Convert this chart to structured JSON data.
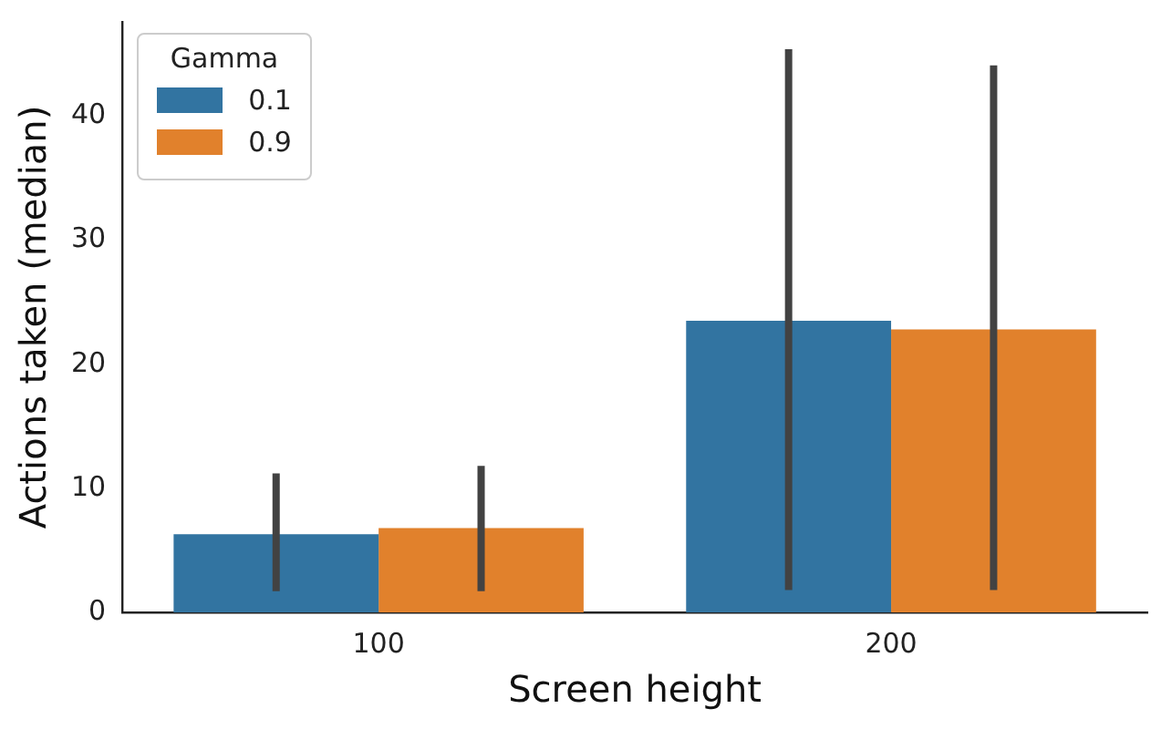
{
  "chart_data": {
    "type": "bar",
    "xlabel": "Screen height",
    "ylabel": "Actions taken (median)",
    "legend_title": "Gamma",
    "legend": "top left",
    "categories": [
      "100",
      "200"
    ],
    "series": [
      {
        "name": "0.1",
        "color": "#3274a1",
        "values": [
          6.3,
          23.5
        ],
        "errors": [
          [
            1.7,
            11.2
          ],
          [
            1.8,
            45.4
          ]
        ]
      },
      {
        "name": "0.9",
        "color": "#e1812c",
        "values": [
          6.8,
          22.8
        ],
        "errors": [
          [
            1.7,
            11.8
          ],
          [
            1.8,
            44.1
          ]
        ]
      }
    ],
    "ylim": [
      0,
      47.6
    ],
    "yticks": [
      0,
      10,
      20,
      30,
      40
    ],
    "grid": false
  }
}
